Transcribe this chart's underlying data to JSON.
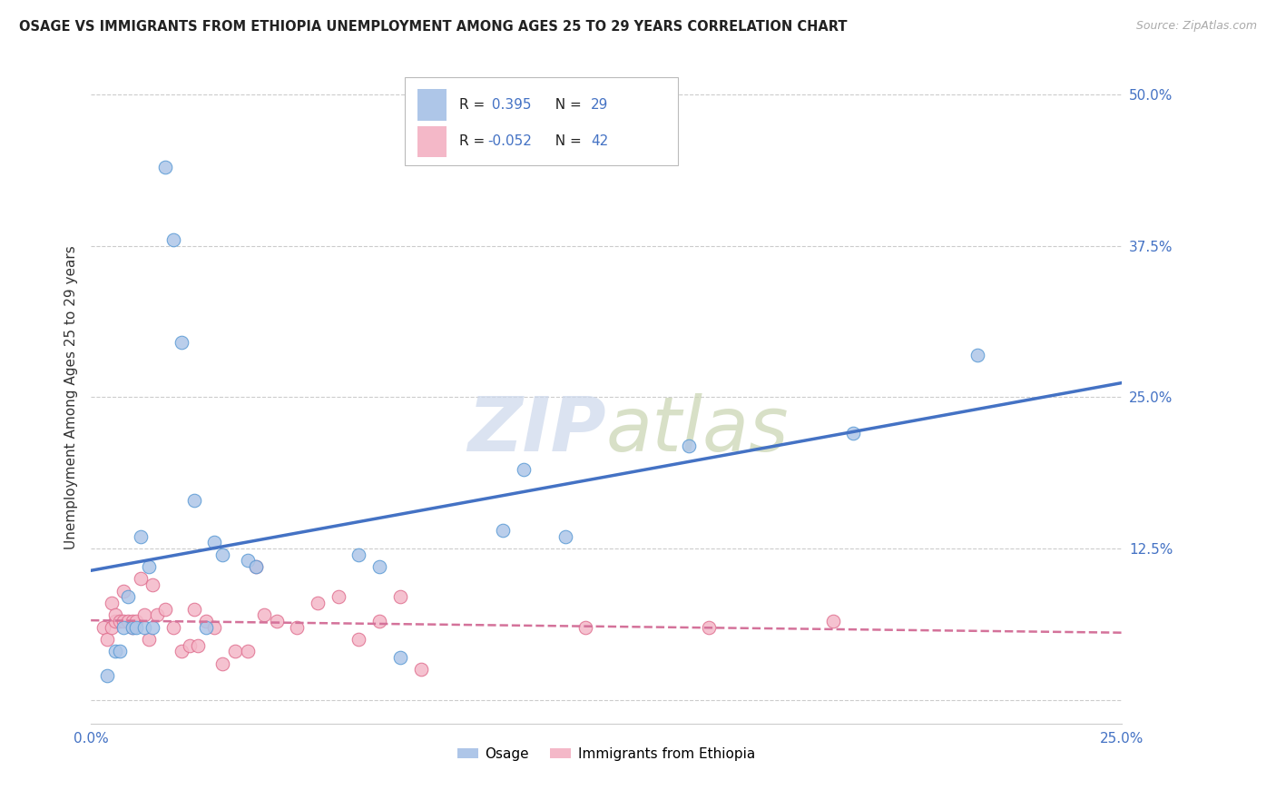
{
  "title": "OSAGE VS IMMIGRANTS FROM ETHIOPIA UNEMPLOYMENT AMONG AGES 25 TO 29 YEARS CORRELATION CHART",
  "source": "Source: ZipAtlas.com",
  "ylabel": "Unemployment Among Ages 25 to 29 years",
  "xlim": [
    0.0,
    0.25
  ],
  "ylim": [
    -0.02,
    0.52
  ],
  "xticks": [
    0.0,
    0.05,
    0.1,
    0.15,
    0.2,
    0.25
  ],
  "yticks": [
    0.0,
    0.125,
    0.25,
    0.375,
    0.5
  ],
  "xticklabels": [
    "0.0%",
    "",
    "",
    "",
    "",
    "25.0%"
  ],
  "yticklabels": [
    "",
    "12.5%",
    "25.0%",
    "37.5%",
    "50.0%"
  ],
  "legend_labels": [
    "Osage",
    "Immigrants from Ethiopia"
  ],
  "osage_R": "0.395",
  "osage_N": "29",
  "ethiopia_R": "-0.052",
  "ethiopia_N": "42",
  "osage_color": "#aec6e8",
  "osage_edge_color": "#5b9bd5",
  "osage_line_color": "#4472c4",
  "ethiopia_color": "#f4b8c8",
  "ethiopia_edge_color": "#e07090",
  "ethiopia_line_color": "#d4729a",
  "grid_color": "#cccccc",
  "tick_color": "#4472c4",
  "title_color": "#222222",
  "source_color": "#aaaaaa",
  "ylabel_color": "#333333",
  "legend_text_color": "#222222",
  "legend_value_color": "#4472c4",
  "watermark_zip_color": "#ccd8ec",
  "watermark_atlas_color": "#c8d4b0",
  "osage_x": [
    0.004,
    0.006,
    0.007,
    0.008,
    0.009,
    0.01,
    0.011,
    0.012,
    0.013,
    0.014,
    0.015,
    0.018,
    0.02,
    0.022,
    0.025,
    0.028,
    0.03,
    0.032,
    0.038,
    0.04,
    0.065,
    0.07,
    0.075,
    0.1,
    0.105,
    0.115,
    0.145,
    0.185,
    0.215
  ],
  "osage_y": [
    0.02,
    0.04,
    0.04,
    0.06,
    0.085,
    0.06,
    0.06,
    0.135,
    0.06,
    0.11,
    0.06,
    0.44,
    0.38,
    0.295,
    0.165,
    0.06,
    0.13,
    0.12,
    0.115,
    0.11,
    0.12,
    0.11,
    0.035,
    0.14,
    0.19,
    0.135,
    0.21,
    0.22,
    0.285
  ],
  "ethiopia_x": [
    0.003,
    0.004,
    0.005,
    0.005,
    0.006,
    0.006,
    0.007,
    0.008,
    0.008,
    0.009,
    0.01,
    0.01,
    0.011,
    0.012,
    0.013,
    0.014,
    0.015,
    0.016,
    0.018,
    0.02,
    0.022,
    0.024,
    0.025,
    0.026,
    0.028,
    0.03,
    0.032,
    0.035,
    0.038,
    0.04,
    0.042,
    0.045,
    0.05,
    0.055,
    0.06,
    0.065,
    0.07,
    0.075,
    0.08,
    0.12,
    0.15,
    0.18
  ],
  "ethiopia_y": [
    0.06,
    0.05,
    0.06,
    0.08,
    0.065,
    0.07,
    0.065,
    0.065,
    0.09,
    0.065,
    0.065,
    0.06,
    0.065,
    0.1,
    0.07,
    0.05,
    0.095,
    0.07,
    0.075,
    0.06,
    0.04,
    0.045,
    0.075,
    0.045,
    0.065,
    0.06,
    0.03,
    0.04,
    0.04,
    0.11,
    0.07,
    0.065,
    0.06,
    0.08,
    0.085,
    0.05,
    0.065,
    0.085,
    0.025,
    0.06,
    0.06,
    0.065
  ]
}
